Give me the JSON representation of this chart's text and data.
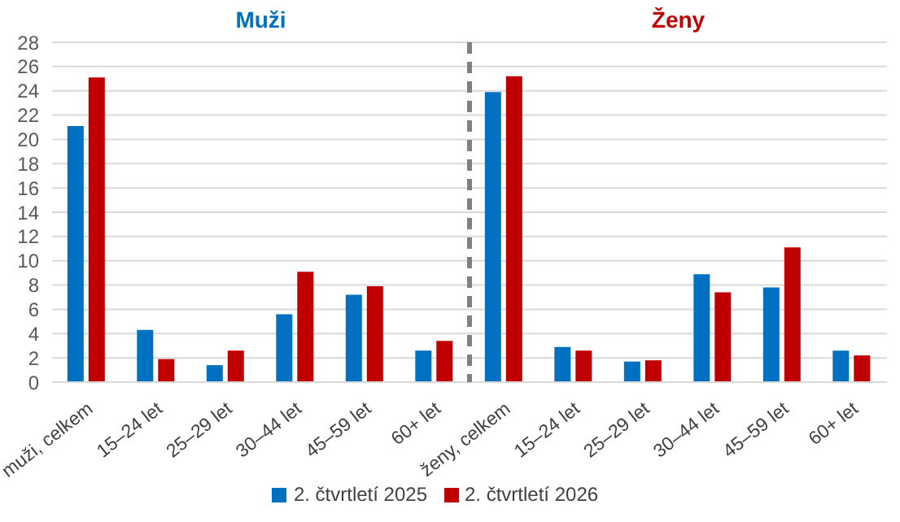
{
  "chart_data": {
    "type": "bar",
    "categories": [
      "muži, celkem",
      "15–24 let",
      "25–29 let",
      "30–44 let",
      "45–59 let",
      "60+ let",
      "ženy, celkem",
      "15–24 let",
      "25–29 let",
      "30–44 let",
      "45–59 let",
      "60+ let"
    ],
    "series": [
      {
        "name": "2. čtvrtletí 2025",
        "color": "#0070c0",
        "values": [
          21.1,
          4.3,
          1.4,
          5.6,
          7.2,
          2.6,
          23.9,
          2.9,
          1.7,
          8.9,
          7.8,
          2.6
        ]
      },
      {
        "name": "2. čtvrtletí 2026",
        "color": "#c00000",
        "values": [
          25.1,
          1.9,
          2.6,
          9.1,
          7.9,
          3.4,
          25.2,
          2.6,
          1.8,
          7.4,
          11.1,
          2.2
        ]
      }
    ],
    "annotations": [
      "Muži",
      "Ženy"
    ],
    "ylim": [
      0,
      28
    ],
    "yticks": [
      0,
      2,
      4,
      6,
      8,
      10,
      12,
      14,
      16,
      18,
      20,
      22,
      24,
      26,
      28
    ],
    "grid": "y",
    "legend": "bottom"
  }
}
